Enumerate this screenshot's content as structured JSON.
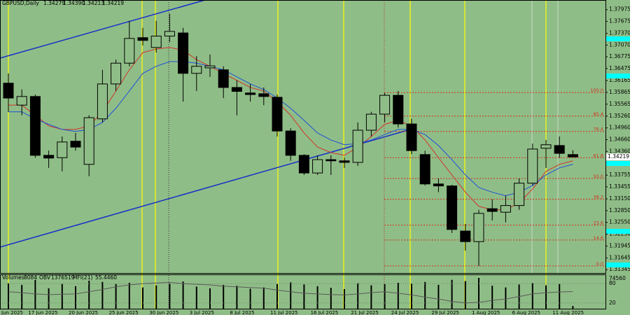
{
  "chart_data": {
    "type": "candlestick",
    "title": "GBPUSD,Daily",
    "last_bar_labels": [
      "1.34279",
      "1.34390",
      "1.34213",
      "1.34219"
    ],
    "categories": [
      "Jun 2025",
      null,
      "17 Jun 2025",
      null,
      null,
      "20 Jun 2025",
      null,
      null,
      "25 Jun 2025",
      null,
      null,
      "30 Jun 2025",
      null,
      null,
      "3 Jul 2025",
      null,
      null,
      "8 Jul 2025",
      null,
      null,
      "11 Jul 2025",
      null,
      null,
      "16 Jul 2025",
      null,
      null,
      "21 Jul 2025",
      null,
      null,
      "24 Jul 2025",
      null,
      null,
      "29 Jul 2025",
      null,
      null,
      "1 Aug 2025",
      null,
      null,
      "6 Aug 2025",
      null,
      null,
      "11 Aug 2025",
      null
    ],
    "open": [
      1.361,
      1.3554,
      1.3576,
      1.3426,
      1.342,
      1.3462,
      1.3403,
      1.3519,
      1.3608,
      1.3661,
      1.3726,
      1.3701,
      1.373,
      1.3738,
      1.3635,
      1.3649,
      1.3644,
      1.3599,
      1.3585,
      1.3583,
      1.3574,
      1.3488,
      1.3426,
      1.3381,
      1.3415,
      1.3412,
      1.3408,
      1.349,
      1.3531,
      1.3579,
      1.3506,
      1.3428,
      1.3353,
      1.3348,
      1.3233,
      1.3206,
      1.329,
      1.3281,
      1.3298,
      1.3355,
      1.3444,
      1.3451,
      1.34279
    ],
    "high": [
      1.3635,
      1.3594,
      1.3581,
      1.3438,
      1.3474,
      1.3483,
      1.3528,
      1.3644,
      1.367,
      1.3769,
      1.3751,
      1.3769,
      1.3787,
      1.3751,
      1.3679,
      1.3683,
      1.3653,
      1.3617,
      1.3608,
      1.3599,
      1.3581,
      1.3495,
      1.3429,
      1.3426,
      1.3426,
      1.342,
      1.351,
      1.3537,
      1.3585,
      1.359,
      1.3519,
      1.3438,
      1.3367,
      1.3351,
      1.3251,
      1.3287,
      1.3314,
      1.3323,
      1.3367,
      1.3456,
      1.3465,
      1.3474,
      1.3439
    ],
    "low": [
      1.3537,
      1.3528,
      1.342,
      1.3394,
      1.3385,
      1.3438,
      1.3373,
      1.351,
      1.359,
      1.3653,
      1.3706,
      1.3688,
      1.3715,
      1.3563,
      1.359,
      1.3626,
      1.3572,
      1.3528,
      1.3563,
      1.3554,
      1.3474,
      1.3412,
      1.3376,
      1.3376,
      1.3376,
      1.3394,
      1.3399,
      1.3474,
      1.351,
      1.3497,
      1.3429,
      1.3349,
      1.3332,
      1.3228,
      1.3183,
      1.3144,
      1.326,
      1.3255,
      1.3287,
      1.3349,
      1.3394,
      1.342,
      1.34213
    ],
    "close": [
      1.3572,
      1.3576,
      1.3426,
      1.3419,
      1.346,
      1.3447,
      1.3522,
      1.3608,
      1.3661,
      1.3724,
      1.3719,
      1.373,
      1.3742,
      1.3635,
      1.3653,
      1.3654,
      1.3599,
      1.3589,
      1.3581,
      1.3576,
      1.3488,
      1.3426,
      1.3381,
      1.3415,
      1.3412,
      1.3408,
      1.349,
      1.3531,
      1.3579,
      1.3506,
      1.3438,
      1.3353,
      1.3348,
      1.3237,
      1.3206,
      1.3278,
      1.3283,
      1.3298,
      1.3355,
      1.3442,
      1.3453,
      1.3431,
      1.34219
    ],
    "up_color": "#8fbd87",
    "down_color": "#000000",
    "lines": [
      {
        "color": "#d0342c",
        "values": [
          1.3554,
          1.3554,
          1.3528,
          1.3501,
          1.3492,
          1.3492,
          1.3501,
          1.3537,
          1.359,
          1.3644,
          1.3688,
          1.3697,
          1.3701,
          1.3694,
          1.367,
          1.3653,
          1.3635,
          1.3617,
          1.3599,
          1.359,
          1.3563,
          1.3528,
          1.3483,
          1.3447,
          1.3433,
          1.3426,
          1.3447,
          1.3474,
          1.3505,
          1.3515,
          1.3501,
          1.3465,
          1.342,
          1.3376,
          1.3332,
          1.3296,
          1.3287,
          1.3287,
          1.3305,
          1.334,
          1.3385,
          1.3403,
          1.3412
        ]
      },
      {
        "color": "#1f4fd8",
        "values": [
          1.3537,
          1.3537,
          1.3519,
          1.3505,
          1.3492,
          1.3487,
          1.3492,
          1.351,
          1.3546,
          1.359,
          1.3635,
          1.3653,
          1.3665,
          1.3665,
          1.3661,
          1.3653,
          1.3644,
          1.3626,
          1.3608,
          1.3594,
          1.3572,
          1.3546,
          1.3515,
          1.3483,
          1.3465,
          1.3453,
          1.3456,
          1.3465,
          1.3479,
          1.3492,
          1.3492,
          1.3479,
          1.3451,
          1.3415,
          1.3376,
          1.3344,
          1.3332,
          1.3323,
          1.3332,
          1.3349,
          1.3376,
          1.3394,
          1.3403
        ]
      }
    ],
    "ylim": [
      1.3126,
      1.3822
    ],
    "yticks": [
      1.37975,
      1.37675,
      {
        "value": 1.3737,
        "label": "1.37370"
      },
      {
        "value": 1.3707,
        "label": "1.37070"
      },
      1.36775,
      1.36475,
      1.36165,
      1.35865,
      1.35565,
      {
        "value": 1.3526,
        "label": "1.35260"
      },
      {
        "value": 1.3496,
        "label": "1.34960"
      },
      {
        "value": 1.3466,
        "label": "1.34660"
      },
      {
        "value": 1.3436,
        "label": "1.34360"
      },
      1.33755,
      1.33455,
      {
        "value": 1.3315,
        "label": "1.33150"
      },
      {
        "value": 1.3285,
        "label": "1.32850"
      },
      {
        "value": 1.3255,
        "label": "1.32550"
      },
      {
        "value": 1.3225,
        "label": "1.32250"
      },
      1.31945,
      1.31645,
      1.31345
    ],
    "fib_color": "#d2301e",
    "fib_levels": [
      {
        "label": "100.0",
        "value": 1.3586
      },
      {
        "label": "85.4",
        "value": 1.3526
      },
      {
        "label": "76.4",
        "value": 1.3487
      },
      {
        "label": "61.8",
        "value": 1.342
      },
      {
        "label": "50.0",
        "value": 1.3367
      },
      {
        "label": "38.2",
        "value": 1.3314
      },
      {
        "label": "23.6",
        "value": 1.3248
      },
      {
        "label": "14.6",
        "value": 1.321
      },
      {
        "label": "0.0",
        "value": 1.3144
      }
    ],
    "volume": {
      "name": "Volumes",
      "color": "#000000",
      "values": [
        62000,
        58000,
        70000,
        50000,
        60000,
        55000,
        68000,
        65000,
        60000,
        63000,
        52000,
        57000,
        61000,
        66000,
        54000,
        50000,
        58000,
        56000,
        49000,
        52000,
        60000,
        64000,
        59000,
        55000,
        51000,
        48000,
        62000,
        57000,
        60000,
        63000,
        61000,
        65000,
        58000,
        70000,
        67000,
        74560,
        56000,
        52000,
        59000,
        62000,
        57000,
        60000,
        8084
      ],
      "ylim": [
        0,
        74560
      ],
      "yticks": [
        74560
      ]
    },
    "obv": {
      "name": "OBV",
      "value": 1376519
    },
    "mfi": {
      "name": "MFI(21)",
      "color": "#5a5a5a",
      "printed_value": "55.4460",
      "values": [
        55,
        52,
        48,
        46,
        47,
        48,
        55,
        62,
        70,
        76,
        80,
        82,
        84,
        80,
        78,
        76,
        72,
        70,
        68,
        66,
        60,
        55,
        50,
        48,
        46,
        45,
        48,
        52,
        55,
        50,
        45,
        38,
        32,
        25,
        20,
        22,
        28,
        32,
        40,
        48,
        52,
        54,
        55.446
      ],
      "ylim": [
        0,
        100
      ],
      "yticks": [
        80,
        20
      ]
    }
  }
}
